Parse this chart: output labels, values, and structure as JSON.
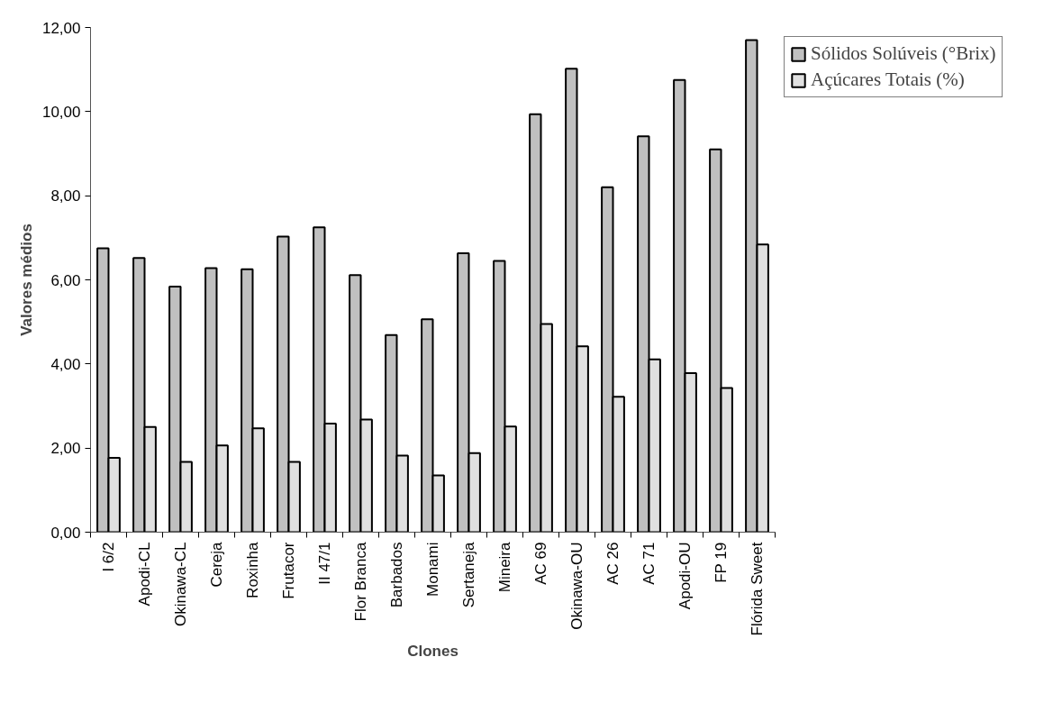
{
  "chart_data": {
    "type": "bar",
    "xlabel": "Clones",
    "ylabel": "Valores médios",
    "categories": [
      "I 6/2",
      "Apodi-CL",
      "Okinawa-CL",
      "Cereja",
      "Roxinha",
      "Frutacor",
      "II 47/1",
      "Flor Branca",
      "Barbados",
      "Monami",
      "Sertaneja",
      "Mineira",
      "AC 69",
      "Okinawa-OU",
      "AC 26",
      "AC 71",
      "Apodi-OU",
      "FP 19",
      "Flórida Sweet"
    ],
    "series": [
      {
        "name": "Sólidos Solúveis (°Brix)",
        "color": "#c0c0c0",
        "values": [
          6.75,
          6.52,
          5.84,
          6.28,
          6.25,
          7.03,
          7.25,
          6.11,
          4.69,
          5.06,
          6.63,
          6.45,
          9.94,
          11.02,
          8.2,
          9.41,
          10.75,
          9.1,
          11.7
        ]
      },
      {
        "name": "Açúcares Totais (%)",
        "color": "#e0e0e0",
        "values": [
          1.77,
          2.5,
          1.67,
          2.06,
          2.47,
          1.67,
          2.58,
          2.68,
          1.82,
          1.35,
          1.88,
          2.51,
          4.95,
          4.42,
          3.22,
          4.11,
          3.78,
          3.43,
          6.84
        ]
      }
    ],
    "ylim": [
      0,
      12
    ],
    "yticks": [
      {
        "value": 0,
        "label": "0,00"
      },
      {
        "value": 2,
        "label": "2,00"
      },
      {
        "value": 4,
        "label": "4,00"
      },
      {
        "value": 6,
        "label": "6,00"
      },
      {
        "value": 8,
        "label": "8,00"
      },
      {
        "value": 10,
        "label": "10,00"
      },
      {
        "value": 12,
        "label": "12,00"
      }
    ],
    "grid": false,
    "legend": "top right"
  }
}
